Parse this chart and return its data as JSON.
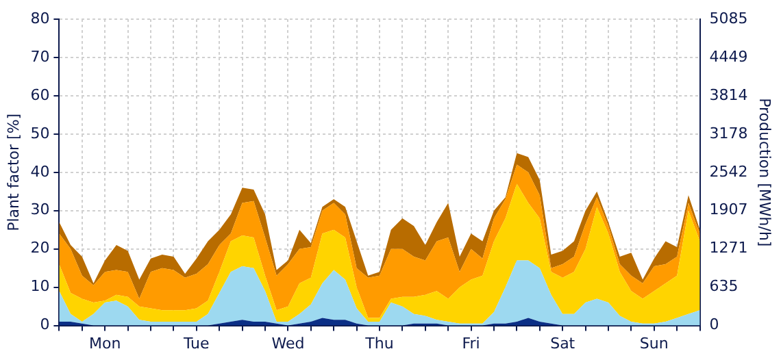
{
  "chart_data": {
    "type": "area",
    "stacked": true,
    "ylabel": "Plant factor [%]",
    "y2label": "Production [MWh/h]",
    "categories": [
      null,
      null,
      null,
      null,
      "Mon",
      null,
      null,
      null,
      null,
      null,
      null,
      null,
      "Tue",
      null,
      null,
      null,
      null,
      null,
      null,
      null,
      "Wed",
      null,
      null,
      null,
      null,
      null,
      null,
      null,
      "Thu",
      null,
      null,
      null,
      null,
      null,
      null,
      null,
      "Fri",
      null,
      null,
      null,
      null,
      null,
      null,
      null,
      "Sat",
      null,
      null,
      null,
      null,
      null,
      null,
      null,
      "Sun",
      null,
      null,
      null,
      null
    ],
    "series": [
      {
        "color": "#0b2f86",
        "values": [
          1,
          1,
          0.5,
          0,
          0,
          0,
          0,
          0,
          0,
          0,
          0,
          0,
          0,
          0,
          0.5,
          1,
          1.5,
          1,
          1,
          0.5,
          0,
          0.5,
          1,
          2,
          1.5,
          1.5,
          0.5,
          0,
          0,
          0,
          0,
          0.5,
          0.5,
          0.5,
          0,
          0,
          0,
          0,
          0.5,
          0.5,
          1,
          2,
          1,
          0.5,
          0,
          0,
          0,
          0,
          0,
          0,
          0,
          0,
          0,
          0,
          0,
          0,
          0
        ]
      },
      {
        "color": "#9dd9f0",
        "values": [
          8,
          2,
          0.5,
          3,
          6,
          6.5,
          5,
          1.5,
          1,
          1,
          1,
          1,
          1,
          3,
          8,
          13,
          14,
          14,
          8,
          0.5,
          1,
          2.5,
          4.5,
          9,
          13,
          10.5,
          4,
          1,
          1,
          6,
          5,
          2.5,
          2,
          1,
          1,
          0.5,
          0.5,
          0.5,
          3,
          9.5,
          16,
          15,
          14,
          7.5,
          3,
          3,
          6,
          7,
          6,
          2.5,
          1,
          0.5,
          0.5,
          1,
          2,
          3,
          4
        ]
      },
      {
        "color": "#ffd400",
        "values": [
          7,
          5.5,
          6,
          3,
          0.5,
          1.5,
          2.5,
          3.5,
          3.5,
          3,
          3,
          3,
          3.5,
          3.5,
          5.5,
          8,
          8,
          8,
          4,
          3,
          4,
          8,
          7,
          13,
          10.5,
          11,
          5.5,
          1,
          1,
          1,
          2.5,
          4.5,
          5.5,
          7.5,
          6,
          9.5,
          11.5,
          12.5,
          18.5,
          18,
          20,
          15,
          13,
          6,
          9.5,
          11,
          14,
          24,
          18,
          11.5,
          8,
          6.5,
          8.5,
          10,
          11,
          27,
          18
        ]
      },
      {
        "color": "#ff9b00",
        "values": [
          8,
          11.5,
          6,
          4.5,
          7.5,
          6.5,
          6.5,
          2,
          9.5,
          11,
          10.5,
          8.5,
          9,
          9.5,
          7,
          2,
          8.5,
          9.5,
          10,
          9,
          11,
          9,
          8,
          6,
          7,
          6,
          5,
          10.5,
          11,
          13,
          12.5,
          10.5,
          9,
          13,
          16,
          4,
          8,
          4.5,
          6,
          5,
          5,
          8,
          6,
          1,
          3.5,
          4,
          6.5,
          2.5,
          2,
          2,
          4,
          4,
          6.5,
          5,
          5,
          2,
          2
        ]
      },
      {
        "color": "#b86c00",
        "values": [
          3,
          1,
          5,
          0.5,
          3,
          6.5,
          5.5,
          5,
          3.5,
          3.5,
          3.5,
          1,
          4,
          6,
          4,
          5,
          4,
          3,
          6,
          1.5,
          1,
          5,
          1,
          1,
          1,
          2,
          7,
          0.5,
          1,
          5,
          8,
          8,
          4,
          5,
          9,
          4,
          4,
          4.5,
          2,
          0.5,
          3,
          4,
          4,
          3.5,
          3.5,
          4,
          3.5,
          1.5,
          1,
          2,
          6,
          1,
          2,
          6,
          2.5,
          2,
          1
        ]
      }
    ],
    "ylim": [
      0,
      80
    ],
    "yticks": [
      0,
      10,
      20,
      30,
      40,
      50,
      60,
      70,
      80
    ],
    "y2lim": [
      0,
      5085
    ],
    "y2ticks": [
      0,
      635,
      1271,
      1907,
      2542,
      3178,
      3814,
      4449,
      5085
    ],
    "grid": true
  }
}
